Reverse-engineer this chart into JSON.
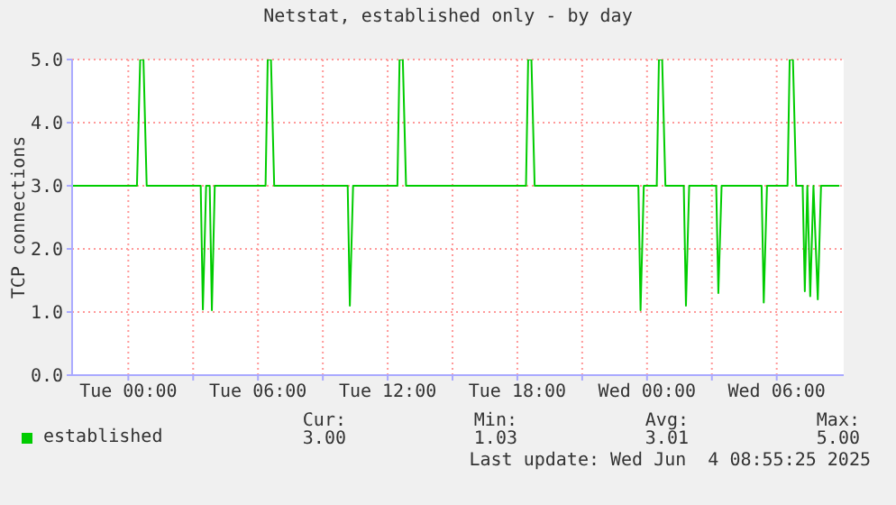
{
  "chart_data": {
    "type": "line",
    "title": "Netstat, established only - by day",
    "ylabel": "TCP connections",
    "x": [
      "2025-06-02T21:24",
      "2025-06-03T00:24",
      "2025-06-03T00:33",
      "2025-06-03T00:42",
      "2025-06-03T00:51",
      "2025-06-03T03:21",
      "2025-06-03T03:27",
      "2025-06-03T03:36",
      "2025-06-03T03:46",
      "2025-06-03T03:52",
      "2025-06-03T04:00",
      "2025-06-03T06:21",
      "2025-06-03T06:27",
      "2025-06-03T06:36",
      "2025-06-03T06:45",
      "2025-06-03T10:09",
      "2025-06-03T10:15",
      "2025-06-03T10:24",
      "2025-06-03T12:27",
      "2025-06-03T12:33",
      "2025-06-03T12:42",
      "2025-06-03T12:51",
      "2025-06-03T18:24",
      "2025-06-03T18:30",
      "2025-06-03T18:39",
      "2025-06-03T18:48",
      "2025-06-03T23:36",
      "2025-06-03T23:42",
      "2025-06-03T23:51",
      "2025-06-04T00:27",
      "2025-06-04T00:33",
      "2025-06-04T00:42",
      "2025-06-04T00:51",
      "2025-06-04T01:42",
      "2025-06-04T01:48",
      "2025-06-04T01:57",
      "2025-06-04T03:12",
      "2025-06-04T03:18",
      "2025-06-04T03:27",
      "2025-06-04T05:18",
      "2025-06-04T05:24",
      "2025-06-04T05:33",
      "2025-06-04T06:30",
      "2025-06-04T06:36",
      "2025-06-04T06:45",
      "2025-06-04T06:54",
      "2025-06-04T07:12",
      "2025-06-04T07:18",
      "2025-06-04T07:25",
      "2025-06-04T07:33",
      "2025-06-04T07:42",
      "2025-06-04T07:54",
      "2025-06-04T08:03",
      "2025-06-04T08:54"
    ],
    "series": [
      {
        "name": "established",
        "color": "#00cc00",
        "values": [
          3,
          3,
          5,
          5,
          3,
          3,
          1.04,
          3,
          3,
          1.03,
          3,
          3,
          5,
          5,
          3,
          3,
          1.1,
          3,
          3,
          5,
          5,
          3,
          3,
          5,
          5,
          3,
          3,
          1.03,
          3,
          3,
          5,
          5,
          3,
          3,
          1.1,
          3,
          3,
          1.3,
          3,
          3,
          1.15,
          3,
          3,
          5,
          5,
          3,
          3,
          1.33,
          3,
          1.25,
          3,
          1.2,
          3,
          3
        ]
      }
    ],
    "xlim": [
      "2025-06-02T21:24",
      "2025-06-04T09:06"
    ],
    "xticks": [
      {
        "value": "2025-06-03T00:00",
        "label": "Tue 00:00"
      },
      {
        "value": "2025-06-03T03:00",
        "label": null
      },
      {
        "value": "2025-06-03T06:00",
        "label": "Tue 06:00"
      },
      {
        "value": "2025-06-03T09:00",
        "label": null
      },
      {
        "value": "2025-06-03T12:00",
        "label": "Tue 12:00"
      },
      {
        "value": "2025-06-03T15:00",
        "label": null
      },
      {
        "value": "2025-06-03T18:00",
        "label": "Tue 18:00"
      },
      {
        "value": "2025-06-03T21:00",
        "label": null
      },
      {
        "value": "2025-06-04T00:00",
        "label": "Wed 00:00"
      },
      {
        "value": "2025-06-04T03:00",
        "label": null
      },
      {
        "value": "2025-06-04T06:00",
        "label": "Wed 06:00"
      }
    ],
    "ylim": [
      0,
      5
    ],
    "yticks": [
      {
        "value": 0,
        "label": "0.0"
      },
      {
        "value": 1,
        "label": "1.0"
      },
      {
        "value": 2,
        "label": "2.0"
      },
      {
        "value": 3,
        "label": "3.0"
      },
      {
        "value": 4,
        "label": "4.0"
      },
      {
        "value": 5,
        "label": "5.0"
      }
    ],
    "grid": true,
    "legend": "bottom",
    "marker": "none",
    "line_style": "solid",
    "annotations": [
      "Cur:",
      "Min:",
      "Avg:",
      "Max:",
      "3.00",
      "1.03",
      "3.01",
      "5.00",
      "Last update: Wed Jun  4 08:55:25 2025"
    ]
  }
}
